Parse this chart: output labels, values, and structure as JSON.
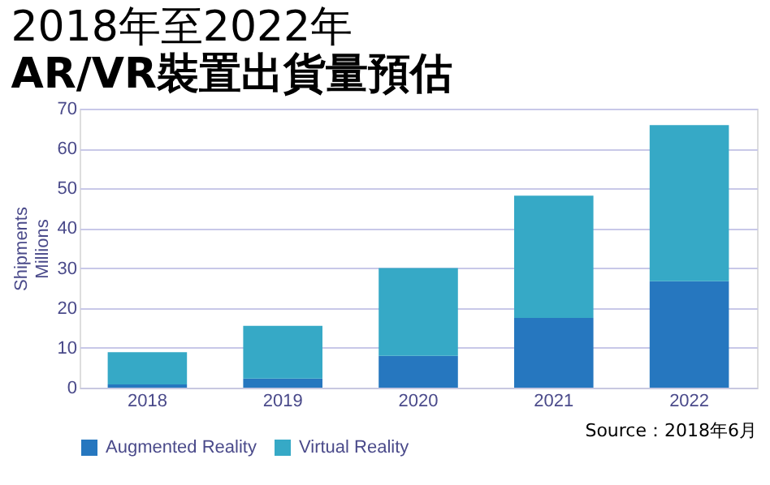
{
  "chart_data": {
    "type": "bar",
    "title": "2018年至2022年",
    "subtitle": "AR/VR裝置出貨量預估",
    "ylabel": "Shipments\nMillions",
    "categories": [
      "2018",
      "2019",
      "2020",
      "2021",
      "2022"
    ],
    "stacked": true,
    "series": [
      {
        "name": "Augmented Reality",
        "color": "#2677bf",
        "values": [
          0.8,
          2.3,
          8,
          17.5,
          26.7
        ]
      },
      {
        "name": "Virtual Reality",
        "color": "#36a9c6",
        "values": [
          8.1,
          13.2,
          22,
          30.7,
          39.2
        ]
      }
    ],
    "ylim": [
      0,
      70
    ],
    "yticks": [
      0,
      10,
      20,
      30,
      40,
      50,
      60,
      70
    ],
    "grid": "y",
    "legend": "bottom",
    "annotations": [
      "Source：2018年6月"
    ]
  }
}
